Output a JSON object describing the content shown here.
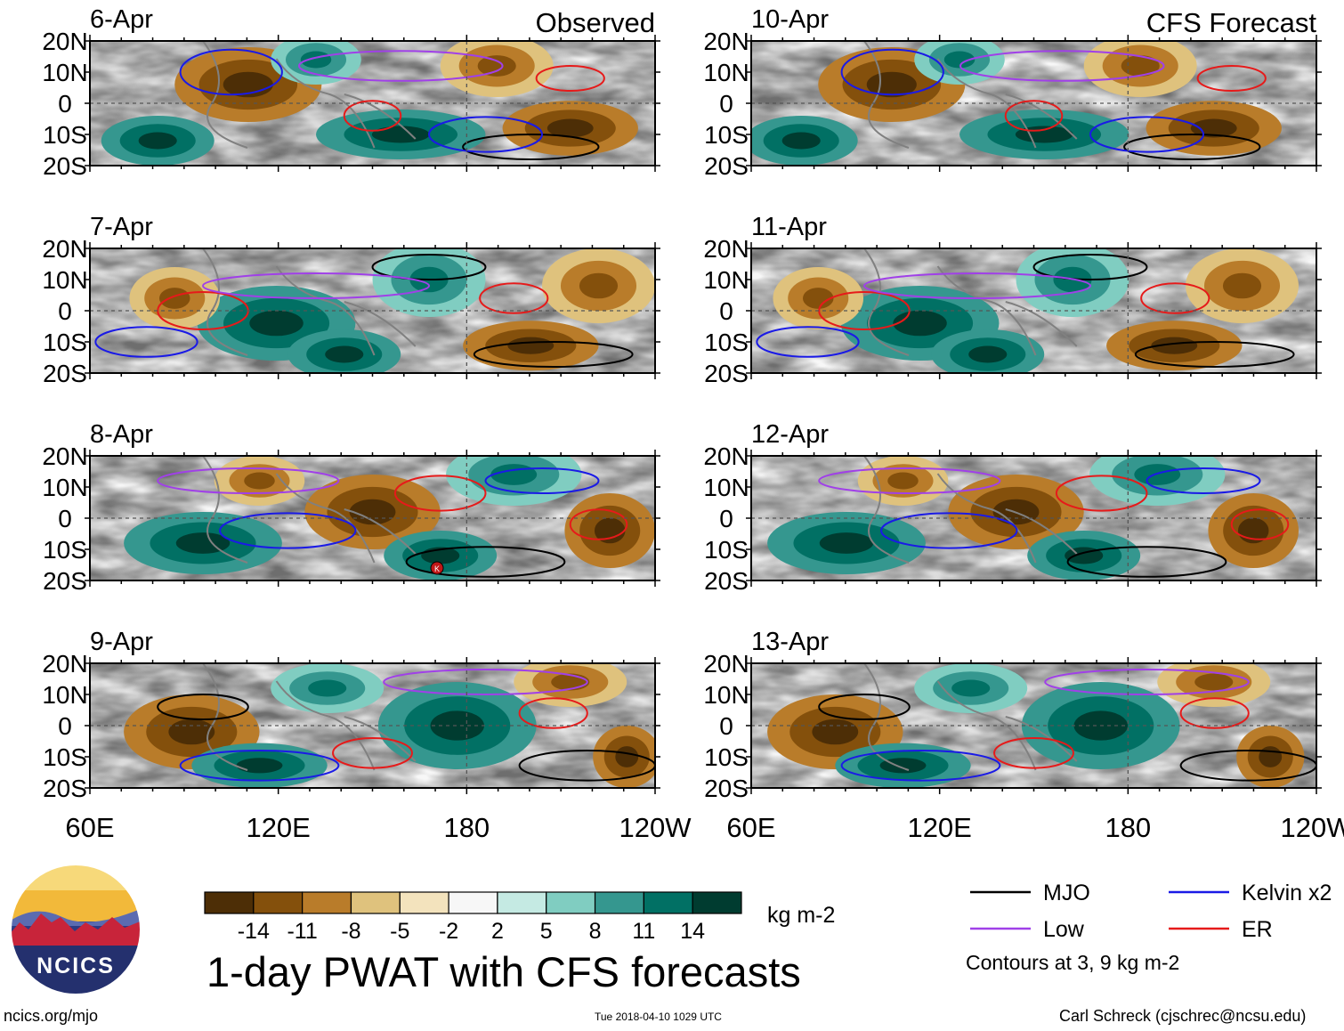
{
  "chart_data": {
    "type": "heatmap",
    "title": "1-day PWAT with CFS forecasts",
    "variable": "PWAT anomaly",
    "units": "kg m-2",
    "observed_label": "Observed",
    "forecast_label": "CFS Forecast",
    "x_ticks": [
      "60E",
      "120E",
      "180",
      "120W"
    ],
    "x_range": [
      60,
      240
    ],
    "y_ticks": [
      "20N",
      "10N",
      "0",
      "10S",
      "20S"
    ],
    "y_range": [
      -20,
      20
    ],
    "colorbar": {
      "labels": [
        "-14",
        "-11",
        "-8",
        "-5",
        "-2",
        "2",
        "5",
        "8",
        "11",
        "14"
      ],
      "colors": [
        "#4d2e06",
        "#84500c",
        "#b97c2a",
        "#dfc27d",
        "#f3e3bd",
        "#f7f7f7",
        "#c5eae3",
        "#80cdc1",
        "#35978f",
        "#017064",
        "#003c30"
      ]
    },
    "panels": [
      {
        "date": "6-Apr",
        "kind": "observed"
      },
      {
        "date": "7-Apr",
        "kind": "observed"
      },
      {
        "date": "8-Apr",
        "kind": "observed"
      },
      {
        "date": "9-Apr",
        "kind": "observed"
      },
      {
        "date": "10-Apr",
        "kind": "forecast"
      },
      {
        "date": "11-Apr",
        "kind": "forecast"
      },
      {
        "date": "12-Apr",
        "kind": "forecast"
      },
      {
        "date": "13-Apr",
        "kind": "forecast"
      }
    ],
    "legend": [
      {
        "name": "MJO",
        "color": "#000000"
      },
      {
        "name": "Kelvin x2",
        "color": "#1a1ae6"
      },
      {
        "name": "Low",
        "color": "#a040e8"
      },
      {
        "name": "ER",
        "color": "#e61a1a"
      }
    ],
    "contour_note": "Contours at 3, 9 kg m-2"
  },
  "logo": {
    "text": "NCICS"
  },
  "footer": {
    "url": "ncics.org/mjo",
    "timestamp": "Tue 2018-04-10 1029 UTC",
    "credit": "Carl Schreck (cjschrec@ncsu.edu)"
  }
}
